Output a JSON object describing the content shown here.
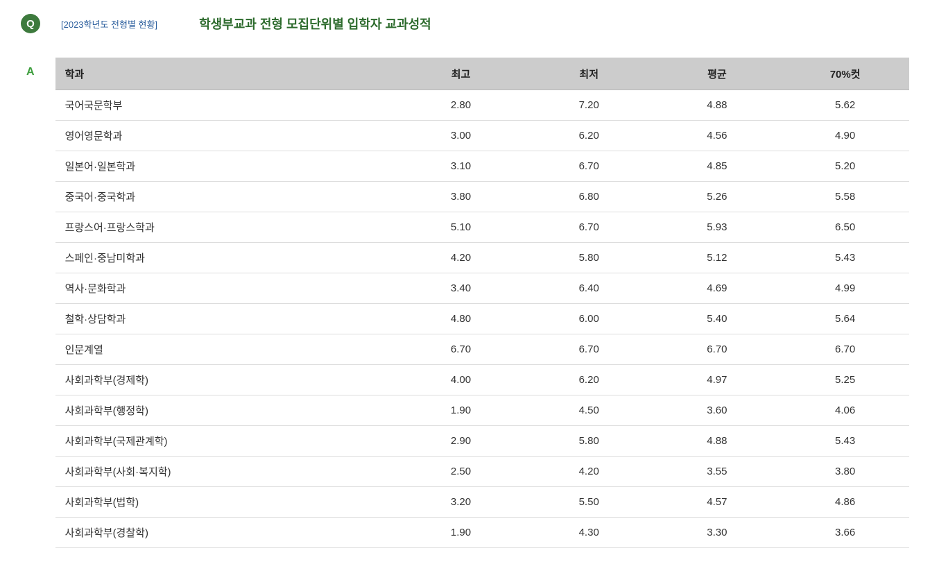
{
  "header": {
    "q_label": "Q",
    "bracket_text": "[2023학년도 전형별 현황]",
    "title": "학생부교과 전형 모집단위별 입학자 교과성적"
  },
  "a_label": "A",
  "table": {
    "columns": [
      "학과",
      "최고",
      "최저",
      "평균",
      "70%컷"
    ],
    "rows": [
      [
        "국어국문학부",
        "2.80",
        "7.20",
        "4.88",
        "5.62"
      ],
      [
        "영어영문학과",
        "3.00",
        "6.20",
        "4.56",
        "4.90"
      ],
      [
        "일본어·일본학과",
        "3.10",
        "6.70",
        "4.85",
        "5.20"
      ],
      [
        "중국어·중국학과",
        "3.80",
        "6.80",
        "5.26",
        "5.58"
      ],
      [
        "프랑스어·프랑스학과",
        "5.10",
        "6.70",
        "5.93",
        "6.50"
      ],
      [
        "스페인·중남미학과",
        "4.20",
        "5.80",
        "5.12",
        "5.43"
      ],
      [
        "역사·문화학과",
        "3.40",
        "6.40",
        "4.69",
        "4.99"
      ],
      [
        "철학·상담학과",
        "4.80",
        "6.00",
        "5.40",
        "5.64"
      ],
      [
        "인문계열",
        "6.70",
        "6.70",
        "6.70",
        "6.70"
      ],
      [
        "사회과학부(경제학)",
        "4.00",
        "6.20",
        "4.97",
        "5.25"
      ],
      [
        "사회과학부(행정학)",
        "1.90",
        "4.50",
        "3.60",
        "4.06"
      ],
      [
        "사회과학부(국제관계학)",
        "2.90",
        "5.80",
        "4.88",
        "5.43"
      ],
      [
        "사회과학부(사회·복지학)",
        "2.50",
        "4.20",
        "3.55",
        "3.80"
      ],
      [
        "사회과학부(법학)",
        "3.20",
        "5.50",
        "4.57",
        "4.86"
      ],
      [
        "사회과학부(경찰학)",
        "1.90",
        "4.30",
        "3.30",
        "3.66"
      ]
    ]
  },
  "styling": {
    "q_badge_bg": "#3d7a3d",
    "q_badge_color": "#ffffff",
    "bracket_color": "#2c5f9e",
    "title_color": "#2d6b2d",
    "a_label_color": "#3d9e3d",
    "header_bg": "#cccccc",
    "header_text": "#222222",
    "cell_text": "#333333",
    "row_border": "#dddddd",
    "body_bg": "#ffffff",
    "title_fontsize": 18,
    "cell_fontsize": 15
  }
}
